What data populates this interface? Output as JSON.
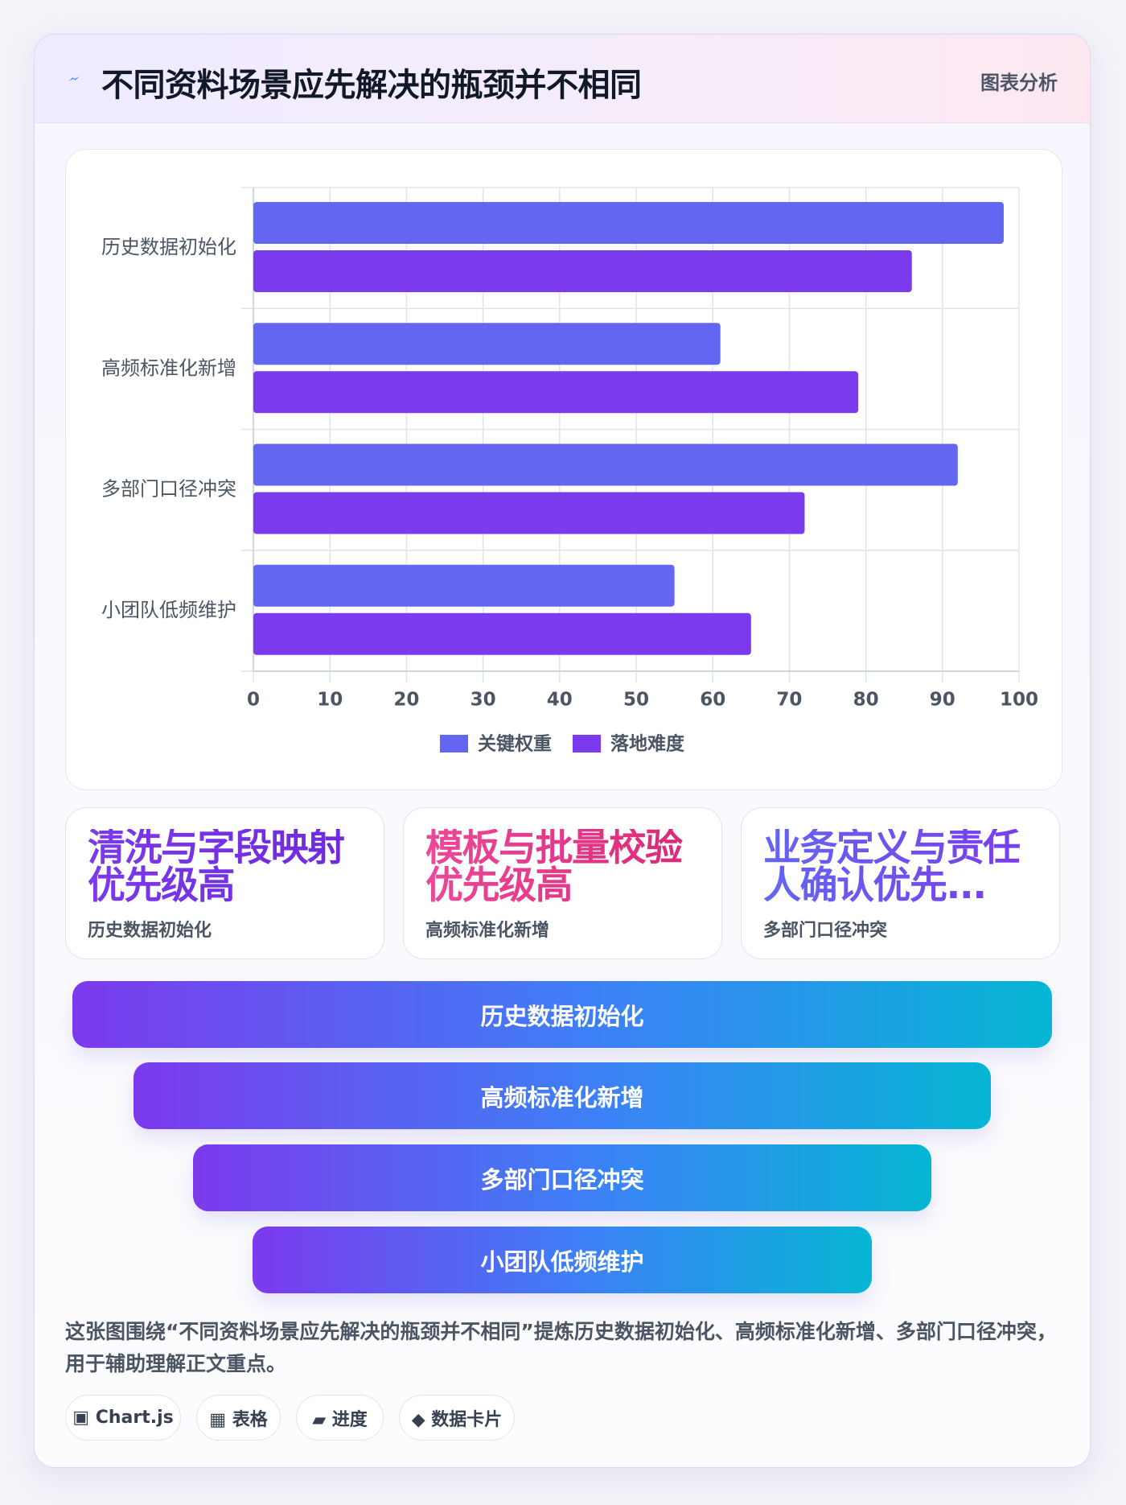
{
  "header": {
    "title": "不同资料场景应先解决的瓶颈并不相同",
    "tag": "图表分析"
  },
  "chart_data": {
    "type": "bar",
    "orientation": "horizontal",
    "categories": [
      "历史数据初始化",
      "高频标准化新增",
      "多部门口径冲突",
      "小团队低频维护"
    ],
    "series": [
      {
        "name": "关键权重",
        "color": "#6366f1",
        "values": [
          98,
          61,
          92,
          55
        ]
      },
      {
        "name": "落地难度",
        "color": "#7c3aed",
        "values": [
          86,
          79,
          72,
          65
        ]
      }
    ],
    "xlim": [
      0,
      100
    ],
    "xticks": [
      0,
      10,
      20,
      30,
      40,
      50,
      60,
      70,
      80,
      90,
      100
    ],
    "grid": true,
    "legend": "bottom"
  },
  "cards": [
    {
      "headline": "清洗与字段映射优先级高",
      "subtitle": "历史数据初始化"
    },
    {
      "headline": "模板与批量校验优先级高",
      "subtitle": "高频标准化新增"
    },
    {
      "headline": "业务定义与责任人确认优先...",
      "subtitle": "多部门口径冲突"
    }
  ],
  "funnel": [
    "历史数据初始化",
    "高频标准化新增",
    "多部门口径冲突",
    "小团队低频维护"
  ],
  "description": "这张图围绕“不同资料场景应先解决的瓶颈并不相同”提炼历史数据初始化、高频标准化新增、多部门口径冲突，用于辅助理解正文重点。",
  "chips": [
    "▣ Chart.js",
    "▦ 表格",
    "▰ 进度",
    "◆ 数据卡片"
  ]
}
